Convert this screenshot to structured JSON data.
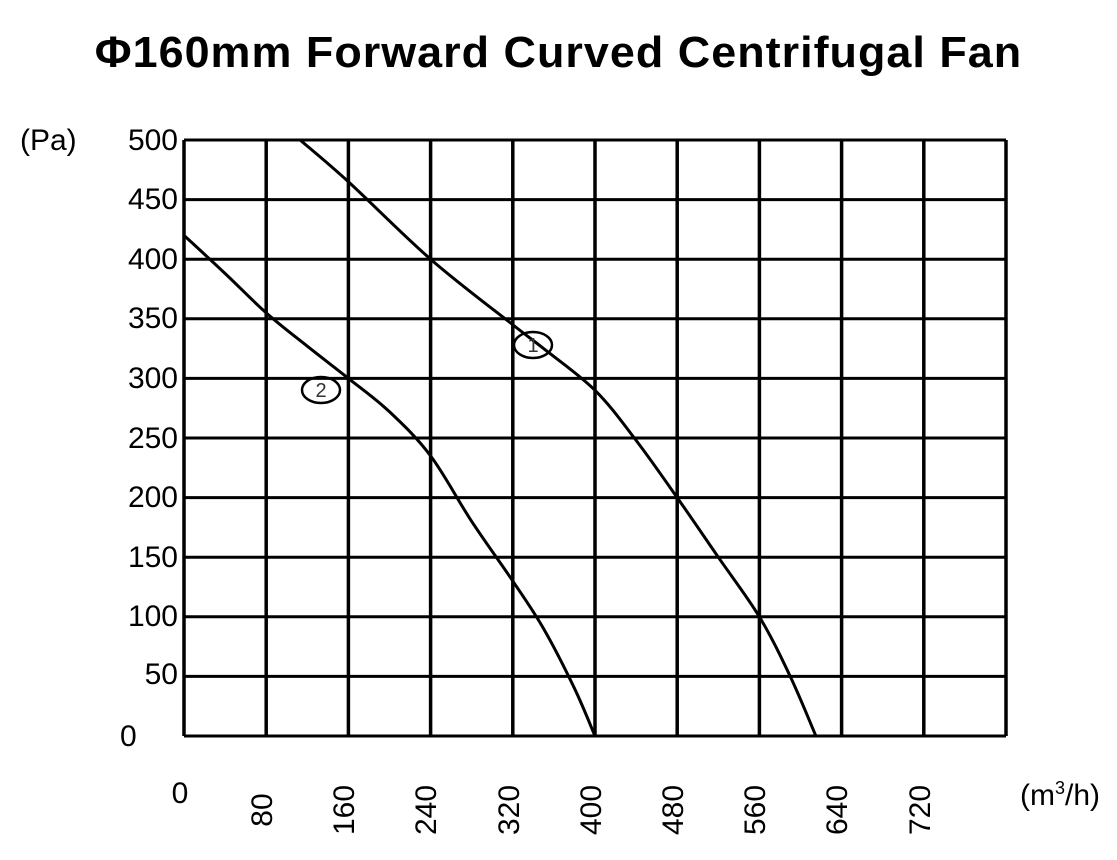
{
  "title": "Φ160mm Forward Curved Centrifugal Fan",
  "y_axis": {
    "unit_label": "(Pa)",
    "ticks": [
      "500",
      "450",
      "400",
      "350",
      "300",
      "250",
      "200",
      "150",
      "100",
      "50",
      "0"
    ]
  },
  "x_axis": {
    "unit_prefix": "(m",
    "unit_sup": "3",
    "unit_suffix": "/h)",
    "ticks": [
      "0",
      "80",
      "160",
      "240",
      "320",
      "400",
      "480",
      "560",
      "640",
      "720"
    ]
  },
  "curve_labels": {
    "curve1": "1",
    "curve2": "2"
  },
  "colors": {
    "line": "#000000",
    "grid": "#000000",
    "background": "#ffffff"
  },
  "chart_data": {
    "type": "line",
    "title": "Φ160mm Forward Curved Centrifugal Fan",
    "xlabel": "(m³/h)",
    "ylabel": "(Pa)",
    "xlim": [
      0,
      800
    ],
    "ylim": [
      0,
      500
    ],
    "x_ticks": [
      0,
      80,
      160,
      240,
      320,
      400,
      480,
      560,
      640,
      720
    ],
    "y_ticks": [
      0,
      50,
      100,
      150,
      200,
      250,
      300,
      350,
      400,
      450,
      500
    ],
    "grid": true,
    "legend": "none (curves labeled inline with circled numbers 1 and 2)",
    "series": [
      {
        "name": "1",
        "points": [
          [
            113,
            500
          ],
          [
            160,
            465
          ],
          [
            240,
            400
          ],
          [
            320,
            345
          ],
          [
            350,
            325
          ],
          [
            400,
            290
          ],
          [
            440,
            248
          ],
          [
            480,
            200
          ],
          [
            520,
            150
          ],
          [
            560,
            100
          ],
          [
            590,
            50
          ],
          [
            615,
            0
          ]
        ]
      },
      {
        "name": "2",
        "points": [
          [
            0,
            420
          ],
          [
            40,
            388
          ],
          [
            80,
            355
          ],
          [
            120,
            327
          ],
          [
            160,
            300
          ],
          [
            200,
            272
          ],
          [
            240,
            235
          ],
          [
            280,
            180
          ],
          [
            320,
            130
          ],
          [
            350,
            90
          ],
          [
            380,
            40
          ],
          [
            400,
            0
          ]
        ]
      }
    ]
  }
}
